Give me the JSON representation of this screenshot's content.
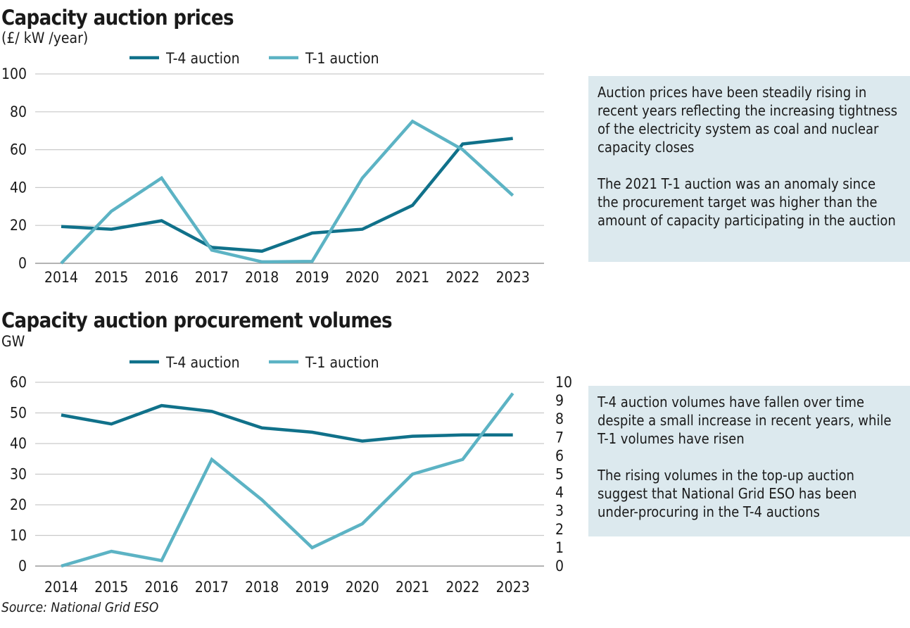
{
  "colors": {
    "t4": "#10718a",
    "t1": "#5cb3c4",
    "grid": "#c9c9c9",
    "note_bg": "#dce9ee"
  },
  "prices": {
    "title": "Capacity auction prices",
    "unit": "(£/ kW /year)",
    "note": [
      "Auction prices have been steadily rising in recent years reflecting the increasing tightness of the electricity system as coal and nuclear capacity closes",
      "The 2021 T-1 auction was an anomaly since the procurement target was higher than the amount of capacity participating in the auction"
    ]
  },
  "volumes": {
    "title": "Capacity auction procurement volumes",
    "unit": "GW",
    "note": [
      "T-4 auction volumes have fallen over time despite a small increase in recent years, while T-1 volumes have risen",
      "The rising volumes in the top-up auction suggest that National Grid ESO has been under-procuring in the T-4 auctions"
    ]
  },
  "source": "Source: National Grid ESO",
  "chart_data": [
    {
      "type": "line",
      "title": "Capacity auction prices",
      "ylabel": "(£/ kW /year)",
      "x": [
        "2014",
        "2015",
        "2016",
        "2017",
        "2018",
        "2019",
        "2020",
        "2021",
        "2022",
        "2023"
      ],
      "ylim": [
        0,
        100
      ],
      "yticks": [
        "0",
        "20",
        "40",
        "60",
        "80",
        "100"
      ],
      "grid": true,
      "legend": "top",
      "series": [
        {
          "name": "T-4 auction",
          "values": [
            19.4,
            18.0,
            22.5,
            8.4,
            6.4,
            15.97,
            18.0,
            30.59,
            63.0,
            65.95
          ]
        },
        {
          "name": "T-1 auction",
          "values": [
            0,
            27.5,
            45.0,
            6.95,
            0.77,
            1.0,
            45.0,
            75.0,
            60.0,
            35.79
          ]
        }
      ]
    },
    {
      "type": "line",
      "title": "Capacity auction procurement volumes",
      "ylabel": "GW",
      "x": [
        "2014",
        "2015",
        "2016",
        "2017",
        "2018",
        "2019",
        "2020",
        "2021",
        "2022",
        "2023"
      ],
      "ylim": [
        0,
        60
      ],
      "yticks": [
        "0",
        "10",
        "20",
        "30",
        "40",
        "50",
        "60"
      ],
      "y2lim": [
        0,
        10
      ],
      "y2ticks": [
        "0",
        "1",
        "2",
        "3",
        "4",
        "5",
        "6",
        "7",
        "8",
        "9",
        "10"
      ],
      "grid": true,
      "legend": "top",
      "series": [
        {
          "name": "T-4 auction",
          "axis": "left",
          "values": [
            49.3,
            46.4,
            52.4,
            50.5,
            45.1,
            43.7,
            40.8,
            42.4,
            42.8,
            42.8
          ]
        },
        {
          "name": "T-1 auction",
          "axis": "right",
          "values": [
            0,
            0.8,
            0.3,
            5.8,
            3.6,
            1.0,
            2.3,
            5.0,
            5.8,
            9.4
          ]
        }
      ]
    }
  ]
}
